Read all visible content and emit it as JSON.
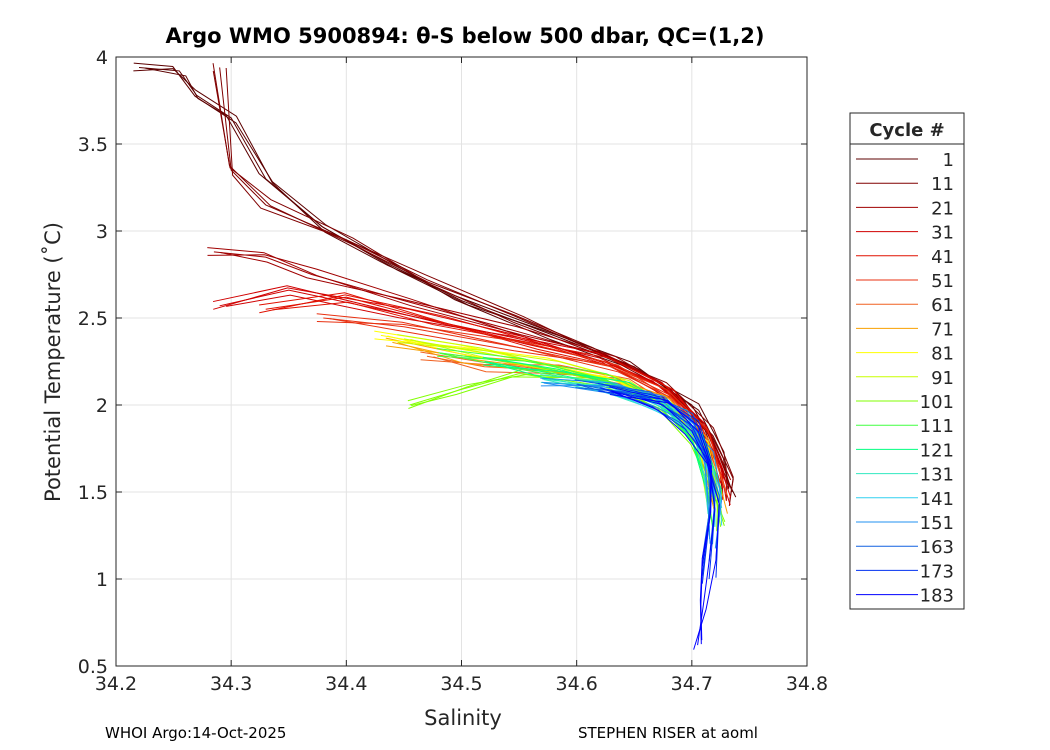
{
  "chart_data": {
    "type": "line",
    "title": "Argo WMO 5900894: θ-S below 500 dbar,  QC=(1,2)",
    "xlabel": "Salinity",
    "ylabel": "Potential Temperature (˚C)",
    "xlim": [
      34.2,
      34.8
    ],
    "ylim": [
      0.5,
      4
    ],
    "xticks": [
      "34.2",
      "34.3",
      "34.4",
      "34.5",
      "34.6",
      "34.7",
      "34.8"
    ],
    "yticks": [
      "0.5",
      "1",
      "1.5",
      "2",
      "2.5",
      "3",
      "3.5",
      "4"
    ],
    "grid": true,
    "legend": {
      "title": "Cycle #",
      "placement": "right"
    },
    "series": [
      {
        "name": "1",
        "color": "#5c0000",
        "points": [
          [
            34.22,
            3.94
          ],
          [
            34.255,
            3.92
          ],
          [
            34.27,
            3.78
          ],
          [
            34.3,
            3.65
          ],
          [
            34.33,
            3.3
          ],
          [
            34.38,
            3.02
          ],
          [
            34.44,
            2.8
          ],
          [
            34.5,
            2.6
          ],
          [
            34.58,
            2.4
          ],
          [
            34.65,
            2.22
          ],
          [
            34.7,
            2.0
          ],
          [
            34.725,
            1.7
          ],
          [
            34.735,
            1.5
          ]
        ]
      },
      {
        "name": "11",
        "color": "#800000",
        "points": [
          [
            34.29,
            3.94
          ],
          [
            34.3,
            3.35
          ],
          [
            34.33,
            3.15
          ],
          [
            34.4,
            2.95
          ],
          [
            34.47,
            2.72
          ],
          [
            34.55,
            2.5
          ],
          [
            34.62,
            2.3
          ],
          [
            34.68,
            2.1
          ],
          [
            34.715,
            1.85
          ],
          [
            34.73,
            1.6
          ],
          [
            34.73,
            1.45
          ]
        ]
      },
      {
        "name": "21",
        "color": "#a00000",
        "points": [
          [
            34.285,
            2.88
          ],
          [
            34.33,
            2.85
          ],
          [
            34.37,
            2.75
          ],
          [
            34.45,
            2.6
          ],
          [
            34.55,
            2.42
          ],
          [
            34.63,
            2.27
          ],
          [
            34.68,
            2.1
          ],
          [
            34.715,
            1.85
          ],
          [
            34.73,
            1.55
          ]
        ]
      },
      {
        "name": "31",
        "color": "#d00000",
        "points": [
          [
            34.29,
            2.57
          ],
          [
            34.35,
            2.66
          ],
          [
            34.45,
            2.52
          ],
          [
            34.55,
            2.38
          ],
          [
            34.62,
            2.27
          ],
          [
            34.67,
            2.12
          ],
          [
            34.705,
            1.92
          ],
          [
            34.725,
            1.65
          ],
          [
            34.73,
            1.45
          ]
        ]
      },
      {
        "name": "41",
        "color": "#e01000",
        "points": [
          [
            34.33,
            2.55
          ],
          [
            34.4,
            2.62
          ],
          [
            34.48,
            2.48
          ],
          [
            34.56,
            2.35
          ],
          [
            34.63,
            2.24
          ],
          [
            34.68,
            2.08
          ],
          [
            34.71,
            1.85
          ],
          [
            34.725,
            1.55
          ]
        ]
      },
      {
        "name": "51",
        "color": "#e83010",
        "points": [
          [
            34.38,
            2.5
          ],
          [
            34.45,
            2.45
          ],
          [
            34.55,
            2.33
          ],
          [
            34.63,
            2.22
          ],
          [
            34.68,
            2.06
          ],
          [
            34.71,
            1.85
          ],
          [
            34.725,
            1.5
          ]
        ]
      },
      {
        "name": "61",
        "color": "#f06020",
        "points": [
          [
            34.47,
            2.28
          ],
          [
            34.52,
            2.22
          ],
          [
            34.58,
            2.2
          ],
          [
            34.64,
            2.14
          ],
          [
            34.685,
            2.0
          ],
          [
            34.71,
            1.8
          ],
          [
            34.725,
            1.5
          ]
        ]
      },
      {
        "name": "71",
        "color": "#f8a000",
        "points": [
          [
            34.44,
            2.36
          ],
          [
            34.5,
            2.27
          ],
          [
            34.56,
            2.22
          ],
          [
            34.63,
            2.15
          ],
          [
            34.68,
            2.02
          ],
          [
            34.71,
            1.8
          ],
          [
            34.725,
            1.4
          ]
        ]
      },
      {
        "name": "81",
        "color": "#ffff00",
        "points": [
          [
            34.43,
            2.4
          ],
          [
            34.5,
            2.32
          ],
          [
            34.57,
            2.24
          ],
          [
            34.63,
            2.15
          ],
          [
            34.68,
            2.0
          ],
          [
            34.71,
            1.78
          ],
          [
            34.72,
            1.4
          ]
        ]
      },
      {
        "name": "91",
        "color": "#c8ff00",
        "points": [
          [
            34.45,
            2.38
          ],
          [
            34.52,
            2.3
          ],
          [
            34.58,
            2.22
          ],
          [
            34.64,
            2.13
          ],
          [
            34.685,
            1.98
          ],
          [
            34.71,
            1.75
          ],
          [
            34.72,
            1.4
          ]
        ]
      },
      {
        "name": "101",
        "color": "#80ff00",
        "points": [
          [
            34.455,
            2.0
          ],
          [
            34.5,
            2.09
          ],
          [
            34.55,
            2.18
          ],
          [
            34.62,
            2.14
          ],
          [
            34.675,
            2.0
          ],
          [
            34.705,
            1.8
          ],
          [
            34.72,
            1.5
          ],
          [
            34.725,
            1.3
          ]
        ]
      },
      {
        "name": "111",
        "color": "#40ff40",
        "points": [
          [
            34.48,
            2.3
          ],
          [
            34.55,
            2.24
          ],
          [
            34.62,
            2.15
          ],
          [
            34.67,
            2.02
          ],
          [
            34.705,
            1.8
          ],
          [
            34.72,
            1.5
          ],
          [
            34.72,
            1.3
          ]
        ]
      },
      {
        "name": "121",
        "color": "#00ff80",
        "points": [
          [
            34.52,
            2.25
          ],
          [
            34.58,
            2.18
          ],
          [
            34.64,
            2.1
          ],
          [
            34.68,
            1.98
          ],
          [
            34.705,
            1.8
          ],
          [
            34.72,
            1.5
          ]
        ]
      },
      {
        "name": "131",
        "color": "#30e8c0",
        "points": [
          [
            34.57,
            2.15
          ],
          [
            34.63,
            2.1
          ],
          [
            34.67,
            2.0
          ],
          [
            34.7,
            1.85
          ],
          [
            34.715,
            1.6
          ],
          [
            34.72,
            1.4
          ]
        ]
      },
      {
        "name": "141",
        "color": "#30d0f0",
        "points": [
          [
            34.6,
            2.12
          ],
          [
            34.65,
            2.06
          ],
          [
            34.69,
            1.94
          ],
          [
            34.71,
            1.75
          ],
          [
            34.72,
            1.5
          ],
          [
            34.72,
            1.3
          ]
        ]
      },
      {
        "name": "151",
        "color": "#2090f0",
        "points": [
          [
            34.57,
            2.13
          ],
          [
            34.63,
            2.1
          ],
          [
            34.67,
            2.02
          ],
          [
            34.7,
            1.88
          ],
          [
            34.715,
            1.7
          ],
          [
            34.72,
            1.45
          ],
          [
            34.718,
            1.2
          ]
        ]
      },
      {
        "name": "163",
        "color": "#1060e0",
        "points": [
          [
            34.6,
            2.12
          ],
          [
            34.66,
            2.05
          ],
          [
            34.695,
            1.92
          ],
          [
            34.712,
            1.72
          ],
          [
            34.72,
            1.45
          ],
          [
            34.715,
            1.1
          ]
        ]
      },
      {
        "name": "173",
        "color": "#0030f0",
        "points": [
          [
            34.62,
            2.1
          ],
          [
            34.67,
            2.02
          ],
          [
            34.7,
            1.88
          ],
          [
            34.715,
            1.68
          ],
          [
            34.72,
            1.4
          ],
          [
            34.715,
            1.0
          ]
        ]
      },
      {
        "name": "183",
        "color": "#0000ff",
        "points": [
          [
            34.63,
            2.08
          ],
          [
            34.675,
            2.0
          ],
          [
            34.7,
            1.85
          ],
          [
            34.715,
            1.65
          ],
          [
            34.72,
            1.4
          ],
          [
            34.715,
            1.1
          ],
          [
            34.71,
            0.85
          ],
          [
            34.705,
            0.62
          ]
        ]
      }
    ]
  },
  "footer": {
    "left": "WHOI Argo:14-Oct-2025",
    "right": "STEPHEN RISER at aoml"
  }
}
